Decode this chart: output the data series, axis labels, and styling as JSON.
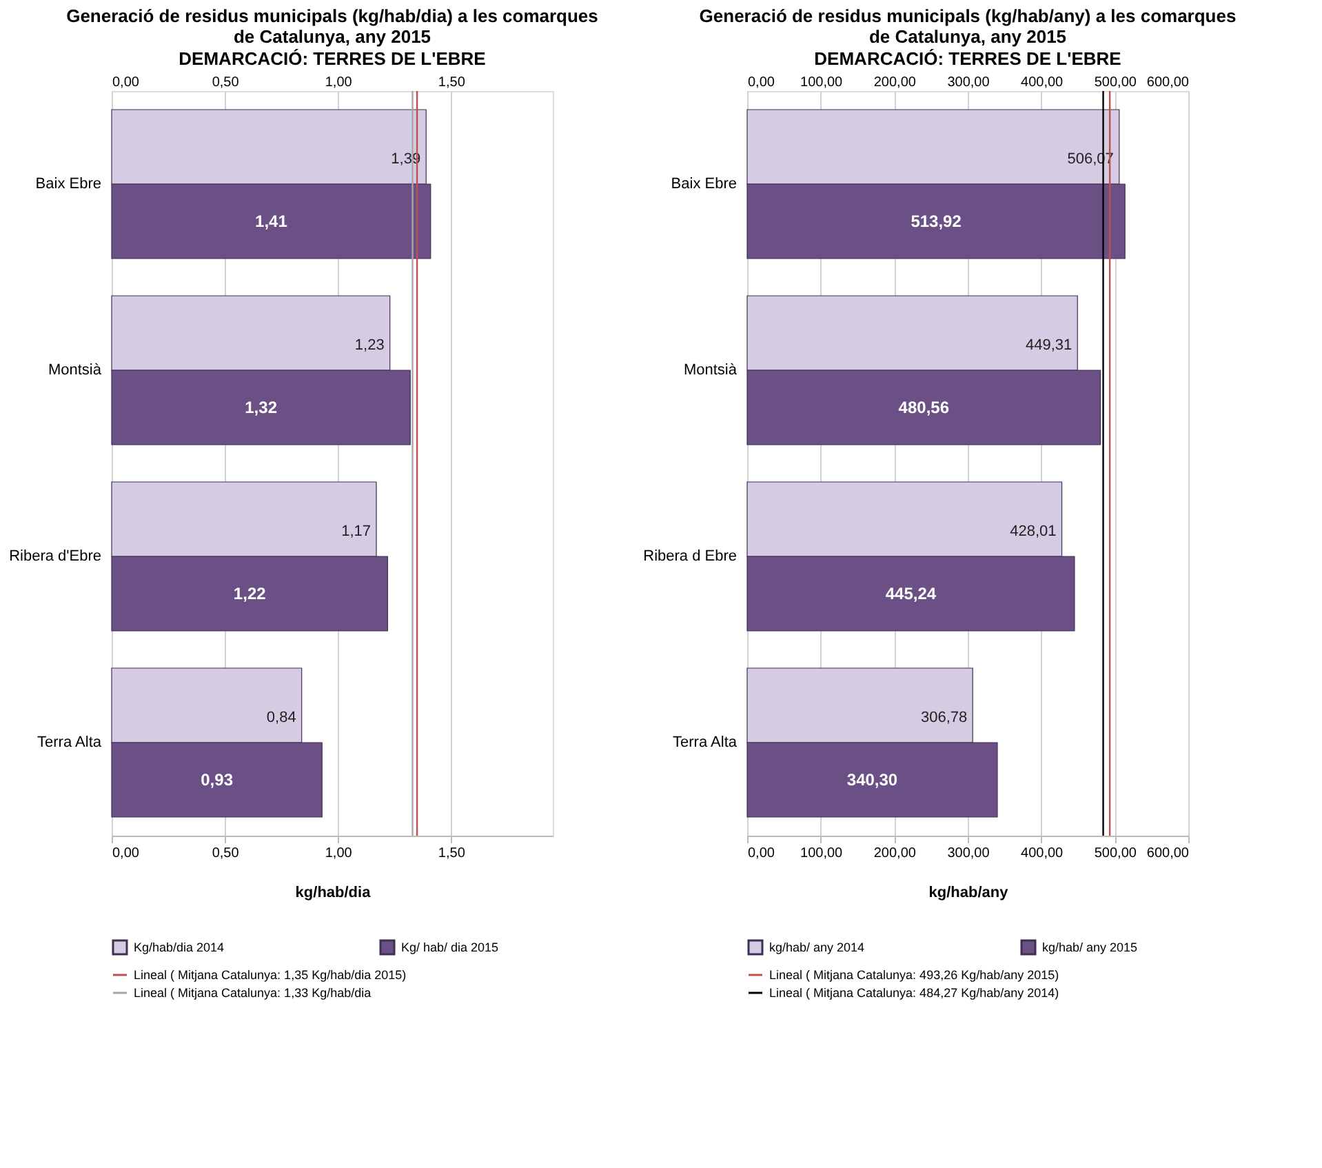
{
  "chart_data": [
    {
      "type": "bar",
      "orientation": "horizontal",
      "title": "Generació de residus municipals (kg/hab/dia) a les comarques de Catalunya, any 2015",
      "subtitle": "DEMARCACIÓ:  TERRES DE L'EBRE",
      "xlabel": "kg/hab/dia",
      "categories": [
        "Baix Ebre",
        "Montsià",
        "Ribera d'Ebre",
        "Terra Alta"
      ],
      "series": [
        {
          "name": "Kg/hab/dia 2014",
          "color": "#d5cce3",
          "values": [
            1.39,
            1.23,
            1.17,
            0.84
          ],
          "value_labels": [
            "1,39",
            "1,23",
            "1,17",
            "0,84"
          ]
        },
        {
          "name": "Kg/ hab/ dia 2015",
          "color": "#6a5084",
          "values": [
            1.41,
            1.32,
            1.22,
            0.93
          ],
          "value_labels": [
            "1,41",
            "1,32",
            "1,22",
            "0,93"
          ]
        }
      ],
      "xlim": [
        0,
        1.95
      ],
      "xticks": [
        {
          "value": 0,
          "label": "0,00"
        },
        {
          "value": 0.5,
          "label": "0,50"
        },
        {
          "value": 1,
          "label": "1,00"
        },
        {
          "value": 1.5,
          "label": "1,50"
        }
      ],
      "x2lim": [
        0,
        1.95
      ],
      "x2ticks": [
        {
          "value": 0,
          "label": "0,00"
        },
        {
          "value": 0.5,
          "label": "0,50"
        },
        {
          "value": 1,
          "label": "1,00"
        },
        {
          "value": 1.5,
          "label": "1,50"
        }
      ],
      "ref_lines": [
        {
          "axis": "x",
          "value": 1.35,
          "label": "Lineal ( Mitjana Catalunya: 1,35 Kg/hab/dia 2015)",
          "color": "#c0504d"
        },
        {
          "axis": "x",
          "value": 1.33,
          "label": "Lineal ( Mitjana Catalunya: 1,33 Kg/hab/dia",
          "color": "#a6a6a6"
        }
      ],
      "grid": "x",
      "legend": "bottom"
    },
    {
      "type": "bar",
      "orientation": "horizontal",
      "title": "Generació de residus municipals (kg/hab/any) a les comarques de Catalunya, any 2015",
      "subtitle": "DEMARCACIÓ: TERRES DE L'EBRE",
      "xlabel": "kg/hab/any",
      "categories": [
        "Baix Ebre",
        "Montsià",
        "Ribera d Ebre",
        "Terra Alta"
      ],
      "series": [
        {
          "name": "kg/hab/ any 2014",
          "color": "#d5cce3",
          "values": [
            506.07,
            449.31,
            428.01,
            306.78
          ],
          "value_labels": [
            "506,07",
            "449,31",
            "428,01",
            "306,78"
          ]
        },
        {
          "name": "kg/hab/ any 2015",
          "color": "#6a5084",
          "values": [
            513.92,
            480.56,
            445.24,
            340.3
          ],
          "value_labels": [
            "513,92",
            "480,56",
            "445,24",
            "340,30"
          ]
        }
      ],
      "xlim": [
        0,
        600
      ],
      "xticks": [
        {
          "value": 0,
          "label": "0,00"
        },
        {
          "value": 100,
          "label": "100,00"
        },
        {
          "value": 200,
          "label": "200,00"
        },
        {
          "value": 300,
          "label": "300,00"
        },
        {
          "value": 400,
          "label": "400,00"
        },
        {
          "value": 500,
          "label": "500,00"
        },
        {
          "value": 600,
          "label": "600,00"
        }
      ],
      "x2lim": [
        0,
        600
      ],
      "x2ticks": [
        {
          "value": 0,
          "label": "0,00"
        },
        {
          "value": 100,
          "label": "100,00"
        },
        {
          "value": 200,
          "label": "200,00"
        },
        {
          "value": 300,
          "label": "300,00"
        },
        {
          "value": 400,
          "label": "400,00"
        },
        {
          "value": 500,
          "label": "500,00"
        },
        {
          "value": 600,
          "label": "600,00"
        }
      ],
      "ref_lines": [
        {
          "axis": "x",
          "value": 493.26,
          "label": "Lineal ( Mitjana Catalunya: 493,26 Kg/hab/any 2015)",
          "color": "#c0504d"
        },
        {
          "axis": "x",
          "value": 484.27,
          "label": "Lineal ( Mitjana Catalunya: 484,27 Kg/hab/any 2014)",
          "color": "#000000"
        }
      ],
      "grid": "x",
      "legend": "bottom"
    }
  ]
}
